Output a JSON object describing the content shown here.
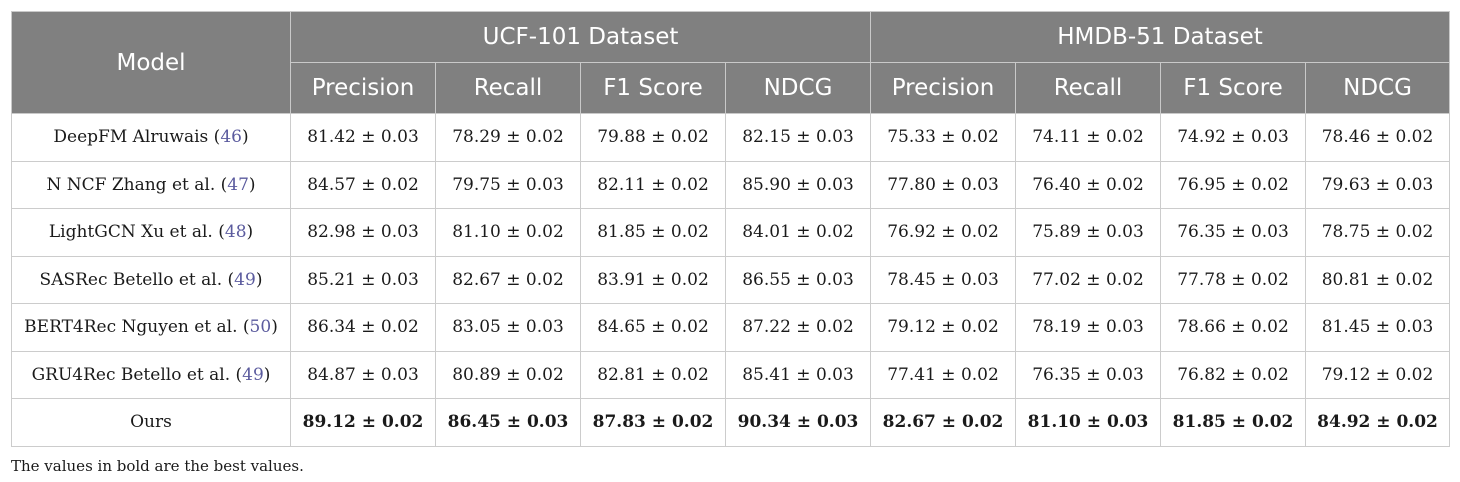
{
  "headers": {
    "model": "Model",
    "groups": [
      "UCF-101 Dataset",
      "HMDB-51 Dataset"
    ],
    "metrics": [
      "Precision",
      "Recall",
      "F1 Score",
      "NDCG",
      "Precision",
      "Recall",
      "F1 Score",
      "NDCG"
    ]
  },
  "rows": [
    {
      "name": "DeepFM Alruwais (",
      "ref": "46",
      "close": ")",
      "values": [
        "81.42 ± 0.03",
        "78.29 ± 0.02",
        "79.88 ± 0.02",
        "82.15 ± 0.03",
        "75.33 ± 0.02",
        "74.11 ± 0.02",
        "74.92 ± 0.03",
        "78.46 ± 0.02"
      ]
    },
    {
      "name": "N NCF Zhang et al. (",
      "ref": "47",
      "close": ")",
      "values": [
        "84.57 ± 0.02",
        "79.75 ± 0.03",
        "82.11 ± 0.02",
        "85.90 ± 0.03",
        "77.80 ± 0.03",
        "76.40 ± 0.02",
        "76.95 ± 0.02",
        "79.63 ± 0.03"
      ]
    },
    {
      "name": "LightGCN Xu et al. (",
      "ref": "48",
      "close": ")",
      "values": [
        "82.98 ± 0.03",
        "81.10 ± 0.02",
        "81.85 ± 0.02",
        "84.01 ± 0.02",
        "76.92 ± 0.02",
        "75.89 ± 0.03",
        "76.35 ± 0.03",
        "78.75 ± 0.02"
      ]
    },
    {
      "name": "SASRec Betello et al. (",
      "ref": "49",
      "close": ")",
      "values": [
        "85.21 ± 0.03",
        "82.67 ± 0.02",
        "83.91 ± 0.02",
        "86.55 ± 0.03",
        "78.45 ± 0.03",
        "77.02 ± 0.02",
        "77.78 ± 0.02",
        "80.81 ± 0.02"
      ]
    },
    {
      "name": "BERT4Rec Nguyen et al. (",
      "ref": "50",
      "close": ")",
      "values": [
        "86.34 ± 0.02",
        "83.05 ± 0.03",
        "84.65 ± 0.02",
        "87.22 ± 0.02",
        "79.12 ± 0.02",
        "78.19 ± 0.03",
        "78.66 ± 0.02",
        "81.45 ± 0.03"
      ]
    },
    {
      "name": "GRU4Rec Betello et al. (",
      "ref": "49",
      "close": ")",
      "values": [
        "84.87 ± 0.03",
        "80.89 ± 0.02",
        "82.81 ± 0.02",
        "85.41 ± 0.03",
        "77.41 ± 0.02",
        "76.35 ± 0.03",
        "76.82 ± 0.02",
        "79.12 ± 0.02"
      ]
    },
    {
      "name": "Ours",
      "ref": "",
      "close": "",
      "values": [
        "89.12 ± 0.02",
        "86.45 ± 0.03",
        "87.83 ± 0.02",
        "90.34 ± 0.03",
        "82.67 ± 0.02",
        "81.10 ± 0.03",
        "81.85 ± 0.02",
        "84.92 ± 0.02"
      ]
    }
  ],
  "note": "The values in bold are the best values."
}
